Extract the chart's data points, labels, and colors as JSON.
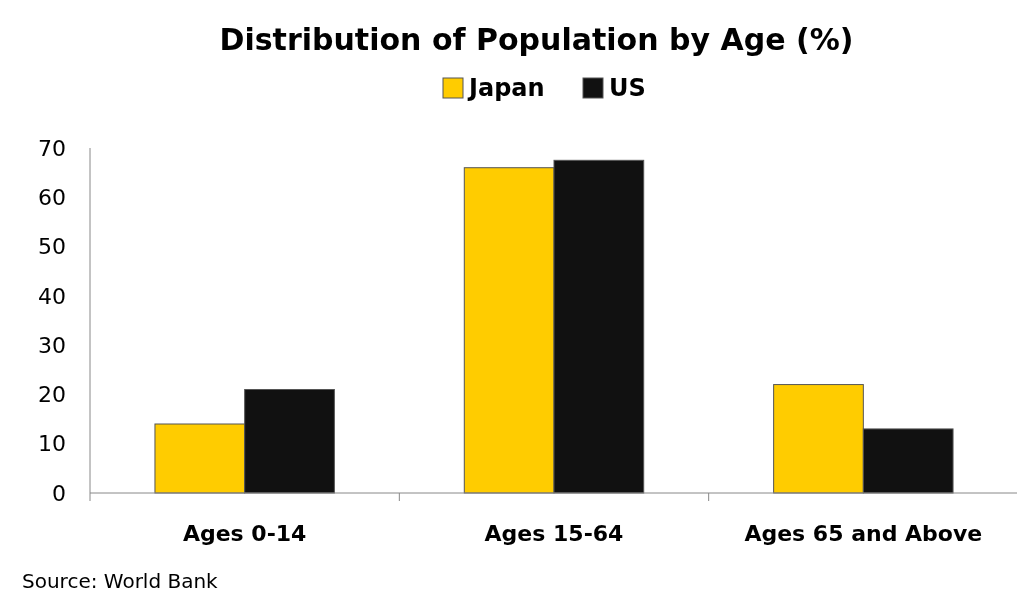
{
  "chart_data": {
    "type": "bar",
    "title": "Distribution of Population by Age (%)",
    "categories": [
      "Ages 0-14",
      "Ages 15-64",
      "Ages 65 and Above"
    ],
    "series": [
      {
        "name": "Japan",
        "color": "#ffcc00",
        "values": [
          14,
          66,
          22
        ]
      },
      {
        "name": "US",
        "color": "#111111",
        "values": [
          21,
          67.5,
          13
        ]
      }
    ],
    "ylim": [
      0,
      70
    ],
    "yticks": [
      0,
      10,
      20,
      30,
      40,
      50,
      60,
      70
    ],
    "grid": false,
    "legend": "top",
    "annotations": [
      "Source: World Bank"
    ]
  }
}
